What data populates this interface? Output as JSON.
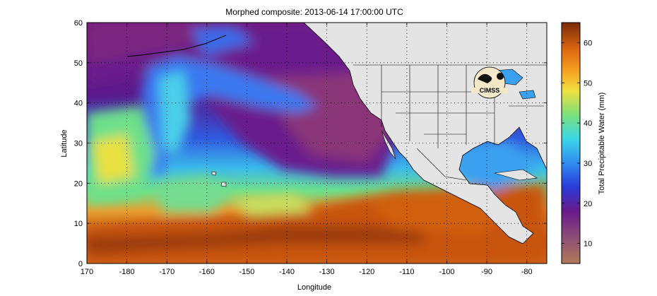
{
  "figure": {
    "title": "Morphed composite: 2013-06-14 17:00:00 UTC",
    "xlabel": "Longitude",
    "ylabel": "Latitude",
    "logo_text": "CIMSS"
  },
  "map": {
    "lon_range": [
      170,
      285
    ],
    "lat_range": [
      0,
      60
    ],
    "x_ticks": [
      "170",
      "-180",
      "-170",
      "-160",
      "-150",
      "-140",
      "-130",
      "-120",
      "-110",
      "-100",
      "-90",
      "-80"
    ],
    "y_ticks": [
      "0",
      "10",
      "20",
      "30",
      "40",
      "50",
      "60"
    ],
    "grid": "dotted"
  },
  "colorbar": {
    "label": "Total Precipitable Water (mm)",
    "range": [
      5,
      65
    ],
    "ticks": [
      "10",
      "20",
      "30",
      "40",
      "50",
      "60"
    ],
    "stops": [
      {
        "value": 5,
        "color": "#b07a5a"
      },
      {
        "value": 12,
        "color": "#8a4a78"
      },
      {
        "value": 18,
        "color": "#6a1a8a"
      },
      {
        "value": 24,
        "color": "#2a3ad8"
      },
      {
        "value": 30,
        "color": "#2f8cf0"
      },
      {
        "value": 36,
        "color": "#3ad6e8"
      },
      {
        "value": 42,
        "color": "#7ae07a"
      },
      {
        "value": 48,
        "color": "#f0e040"
      },
      {
        "value": 53,
        "color": "#f5a020"
      },
      {
        "value": 58,
        "color": "#e06a10"
      },
      {
        "value": 65,
        "color": "#7a2a0a"
      }
    ]
  },
  "colors": {
    "land": "#e4e4e4",
    "border": "#000000"
  }
}
